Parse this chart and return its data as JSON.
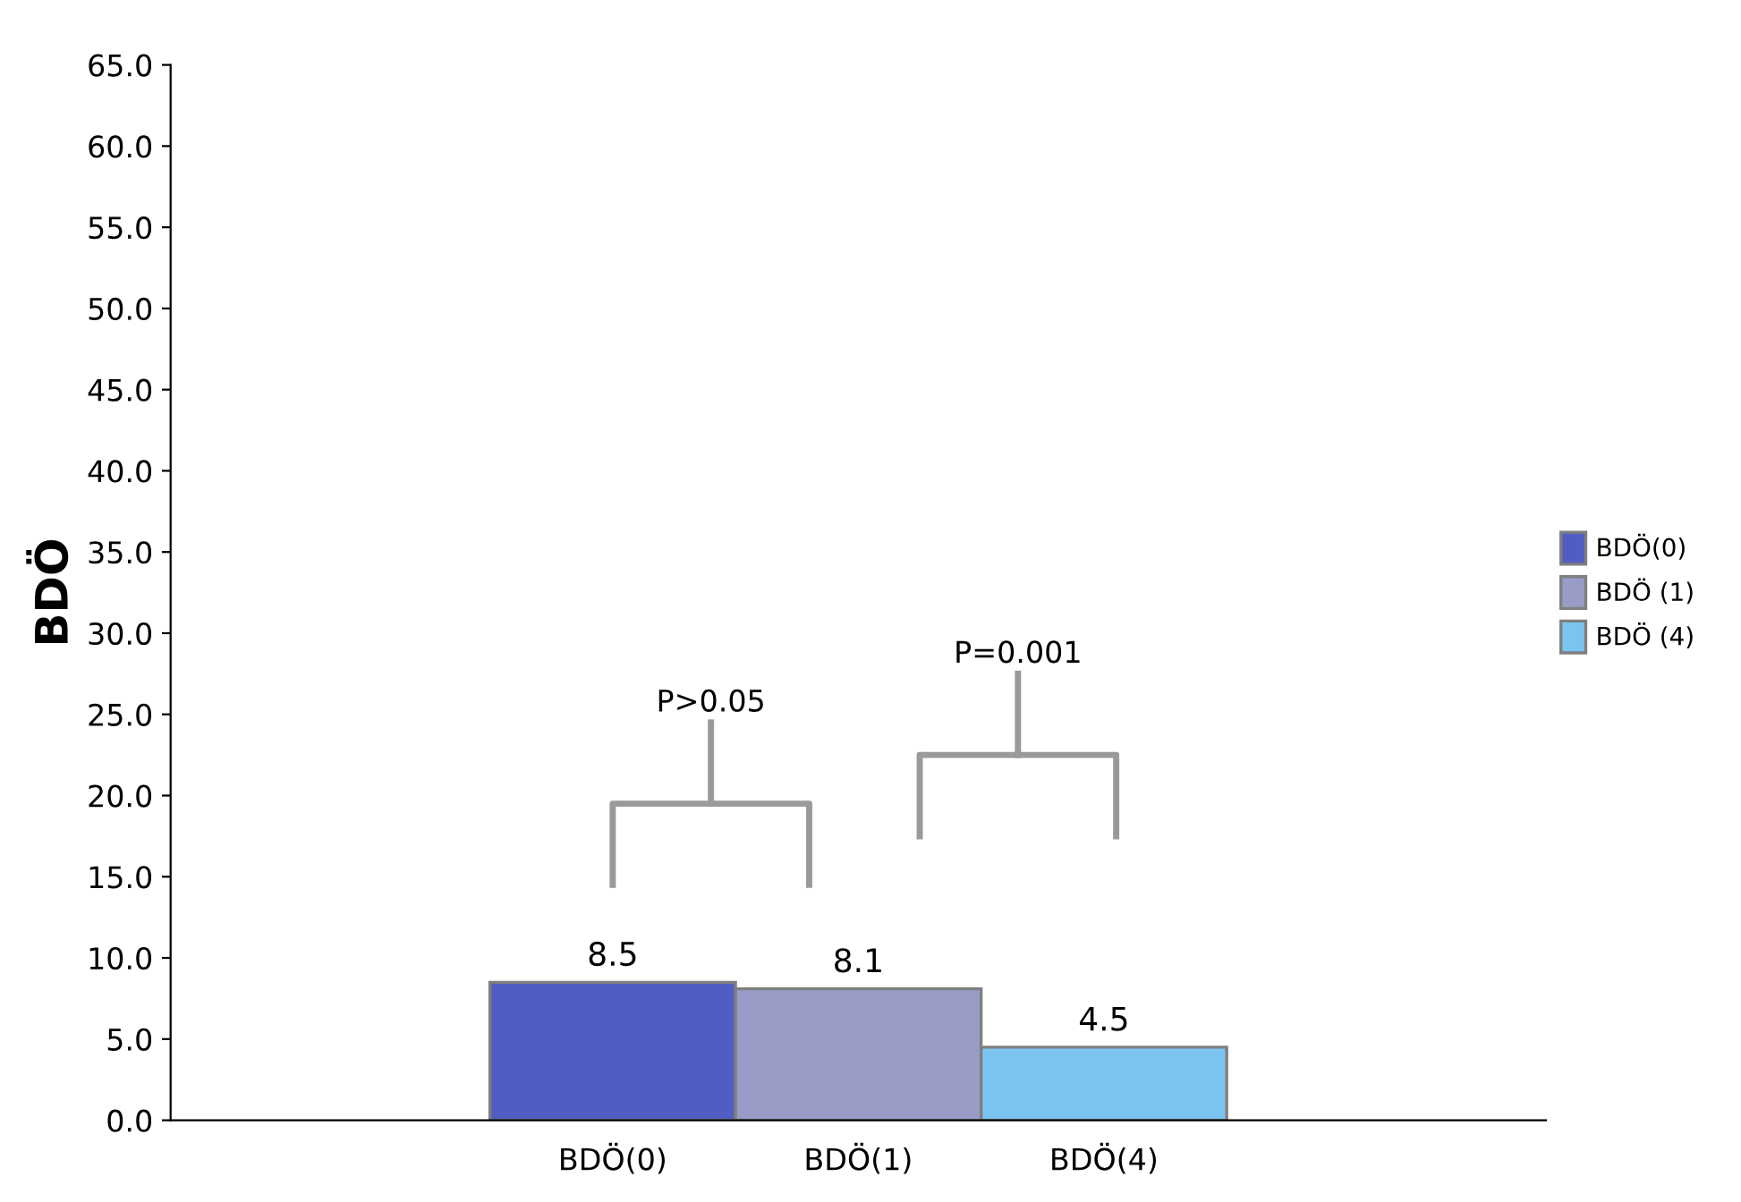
{
  "chart_data": {
    "type": "bar",
    "ylabel": "BDÖ",
    "categories": [
      "BDÖ(0)",
      "BDÖ(1)",
      "BDÖ(4)"
    ],
    "series": [
      {
        "name": "BDÖ(0)",
        "color": "#525dc4",
        "values": [
          8.5,
          null,
          null
        ]
      },
      {
        "name": "BDÖ (1)",
        "color": "#9a9cc8",
        "values": [
          null,
          8.1,
          null
        ]
      },
      {
        "name": "BDÖ (4)",
        "color": "#7cc4f0",
        "values": [
          null,
          null,
          4.5
        ]
      }
    ],
    "data_labels": true,
    "ylim": [
      0,
      65
    ],
    "yticks": [
      {
        "value": 0,
        "label": "0.0"
      },
      {
        "value": 5,
        "label": "5.0"
      },
      {
        "value": 10,
        "label": "10.0"
      },
      {
        "value": 15,
        "label": "15.0"
      },
      {
        "value": 20,
        "label": "20.0"
      },
      {
        "value": 25,
        "label": "25.0"
      },
      {
        "value": 30,
        "label": "30.0"
      },
      {
        "value": 35,
        "label": "35.0"
      },
      {
        "value": 40,
        "label": "40.0"
      },
      {
        "value": 45,
        "label": "45.0"
      },
      {
        "value": 50,
        "label": "50.0"
      },
      {
        "value": 55,
        "label": "55.0"
      },
      {
        "value": 60,
        "label": "60.0"
      },
      {
        "value": 65,
        "label": "65.0"
      }
    ],
    "annotations": [
      "P>0.05",
      "P=0.001"
    ],
    "grid": false,
    "legend": "right"
  }
}
